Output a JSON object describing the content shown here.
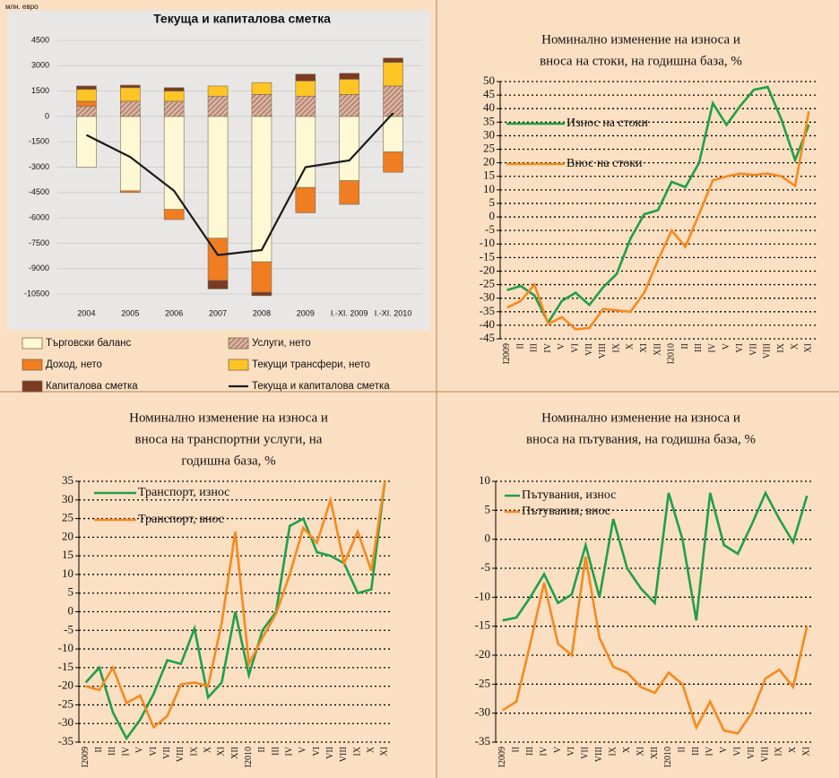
{
  "chart_data": [
    {
      "type": "bar",
      "title": "Текуща и капиталова сметка",
      "ylabel": "млн. евро",
      "stacked": true,
      "legend": "bottom",
      "categories": [
        "2004",
        "2005",
        "2006",
        "2007",
        "2008",
        "2009",
        "I.-XI. 2009",
        "I.-XI. 2010"
      ],
      "ylim": [
        -10500,
        4500
      ],
      "yticks": [
        4500,
        3000,
        1500,
        0,
        -1500,
        -3000,
        -4500,
        -6000,
        -7500,
        -9000,
        -10500
      ],
      "grid": true,
      "series": [
        {
          "name": "Търговски баланс",
          "color": "#fff8d4",
          "values": [
            -3000,
            -4400,
            -5500,
            -7200,
            -8600,
            -4200,
            -3800,
            -2100
          ]
        },
        {
          "name": "Услуги, нето",
          "color": "#d9b3a0",
          "hatch": true,
          "values": [
            600,
            900,
            900,
            1200,
            1300,
            1200,
            1300,
            1800
          ]
        },
        {
          "name": "Доход, нето",
          "color": "#f07d22",
          "values": [
            300,
            -100,
            -600,
            -2500,
            -1800,
            -1500,
            -1400,
            -1200
          ]
        },
        {
          "name": "Текущи трансфери, нето",
          "color": "#ffc425",
          "values": [
            700,
            800,
            600,
            600,
            700,
            900,
            900,
            1400
          ]
        },
        {
          "name": "Капиталова сметка",
          "color": "#7a3b22",
          "values": [
            200,
            150,
            200,
            -500,
            -200,
            400,
            350,
            250
          ]
        },
        {
          "name": "Текуща и капиталова сметка",
          "color": "#1a1a1a",
          "type": "line",
          "values": [
            -1100,
            -2400,
            -4400,
            -8200,
            -7900,
            -3000,
            -2600,
            200
          ]
        }
      ]
    },
    {
      "type": "line",
      "title": [
        "Номинално изменение на износа и",
        "вноса на стоки, на годишна база, %"
      ],
      "legend": "upper left",
      "categories": [
        "I2009",
        "II",
        "III",
        "IV",
        "V",
        "VI",
        "VII",
        "VIII",
        "IX",
        "X",
        "XI",
        "XII",
        "I2010",
        "II",
        "III",
        "IV",
        "V",
        "VI",
        "VII",
        "VIII",
        "IX",
        "X",
        "XI"
      ],
      "ylim": [
        -45,
        50
      ],
      "yticks": [
        50,
        45,
        40,
        35,
        30,
        25,
        20,
        15,
        10,
        5,
        0,
        -5,
        -10,
        -15,
        -20,
        -25,
        -30,
        -35,
        -40,
        -45
      ],
      "grid": true,
      "series": [
        {
          "name": "Износ на стоки",
          "color": "#1fa048",
          "values": [
            -27,
            -25.5,
            -29,
            -39,
            -31,
            -28,
            -32.5,
            -26,
            -21,
            -8,
            1,
            2.5,
            13,
            11,
            20,
            42,
            34,
            41,
            47,
            48,
            36,
            21,
            34
          ]
        },
        {
          "name": "Внос на стоки",
          "color": "#f58a1f",
          "values": [
            -33.5,
            -31,
            -25,
            -39.5,
            -37,
            -41.5,
            -41,
            -34,
            -34.5,
            -35,
            -28,
            -16,
            -5,
            -11,
            1,
            13.5,
            15,
            16,
            15.5,
            16,
            15,
            11.5,
            39
          ]
        }
      ]
    },
    {
      "type": "line",
      "title": [
        "Номинално изменение на износа и",
        "вноса на транспортни услуги, на",
        "годишна база, %"
      ],
      "legend": "upper left",
      "categories": [
        "I2009",
        "II",
        "III",
        "IV",
        "V",
        "VI",
        "VII",
        "VIII",
        "IX",
        "X",
        "XI",
        "XII",
        "I2010",
        "II",
        "III",
        "IV",
        "V",
        "VI",
        "VII",
        "VIII",
        "IX",
        "X",
        "XI"
      ],
      "ylim": [
        -35,
        35
      ],
      "yticks": [
        35,
        30,
        25,
        20,
        15,
        10,
        5,
        0,
        -5,
        -10,
        -15,
        -20,
        -25,
        -30,
        -35
      ],
      "grid": true,
      "series": [
        {
          "name": "Транспорт, износ",
          "color": "#1fa048",
          "values": [
            -19,
            -15,
            -27,
            -34,
            -29,
            -22,
            -13,
            -14,
            -4.5,
            -23,
            -19,
            0,
            -17,
            -5,
            0,
            23,
            25,
            16,
            15,
            13,
            5,
            6,
            35
          ]
        },
        {
          "name": "Транспорт, внос",
          "color": "#f58a1f",
          "values": [
            -20,
            -21,
            -15,
            -24.5,
            -22.5,
            -31,
            -28,
            -19.5,
            -19,
            -20,
            -3,
            21.5,
            -14,
            -7,
            -0.5,
            10,
            22.5,
            18.5,
            30,
            13,
            21.5,
            11,
            35
          ]
        }
      ]
    },
    {
      "type": "line",
      "title": [
        "Номинално изменение на износа и",
        "вноса на пътувания, на годишна база, %"
      ],
      "legend": "upper left",
      "categories": [
        "I2009",
        "II",
        "III",
        "IV",
        "V",
        "VI",
        "VII",
        "VIII",
        "IX",
        "X",
        "XI",
        "XII",
        "I2010",
        "II",
        "III",
        "IV",
        "V",
        "VI",
        "VII",
        "VIII",
        "IX",
        "X",
        "XI"
      ],
      "ylim": [
        -35,
        10
      ],
      "yticks": [
        10,
        5,
        0,
        -5,
        -10,
        -15,
        -20,
        -25,
        -30,
        -35
      ],
      "grid": true,
      "series": [
        {
          "name": "Пътувания, износ",
          "color": "#1fa048",
          "values": [
            -14,
            -13.5,
            -10,
            -6,
            -11,
            -9.5,
            -1,
            -10,
            3.5,
            -5,
            -8.5,
            -11,
            8,
            0,
            -14,
            8,
            -1,
            -2.5,
            2.5,
            8,
            3.5,
            -0.5,
            7.5
          ]
        },
        {
          "name": "Пътувания, внос",
          "color": "#f58a1f",
          "values": [
            -29.5,
            -28,
            -18,
            -7.5,
            -18,
            -20,
            -3,
            -17,
            -22,
            -23,
            -25.5,
            -26.5,
            -23,
            -25,
            -32.5,
            -28,
            -33,
            -33.5,
            -30,
            -24,
            -22.5,
            -25.5,
            -15
          ]
        }
      ]
    }
  ]
}
